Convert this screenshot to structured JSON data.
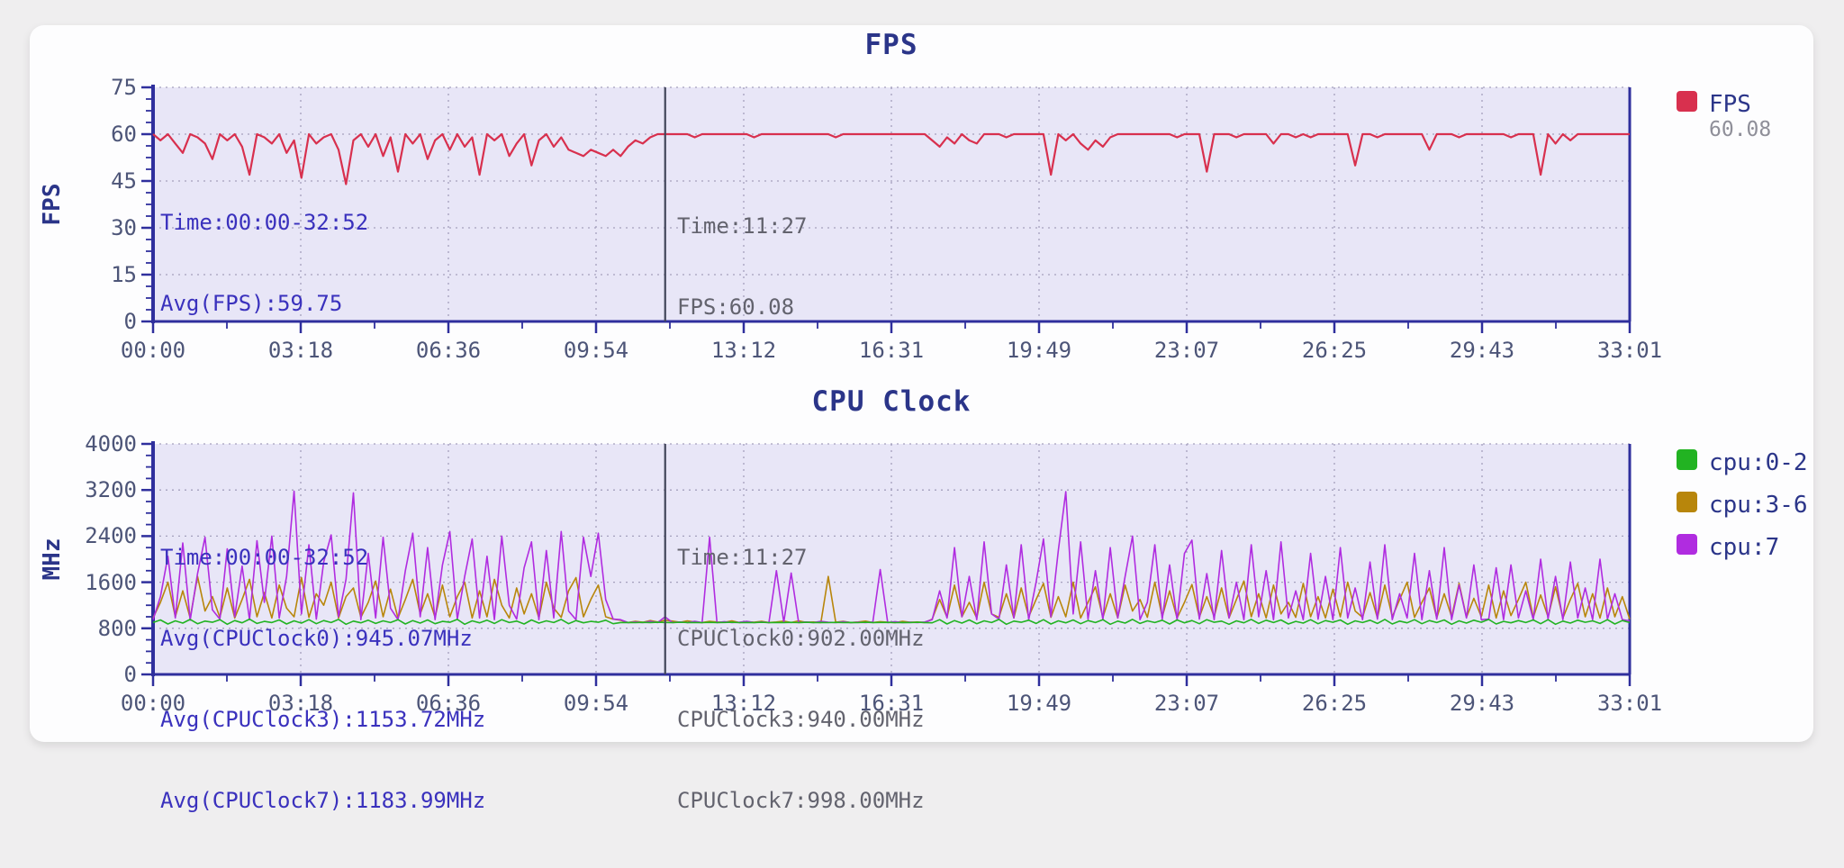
{
  "page": {
    "background": "#efeeef",
    "card_background": "#fdfdfe",
    "plot_background": "#e8e6f7",
    "axis_color": "#2f2f9d",
    "grid_color": "#a4a0bd",
    "cursor_color": "#42465a"
  },
  "chart_data": [
    {
      "type": "line",
      "title": "FPS",
      "ylabel": "FPS",
      "ylim": [
        0,
        75
      ],
      "yticks": [
        0,
        15,
        30,
        45,
        60,
        75
      ],
      "xticks": [
        "00:00",
        "03:18",
        "06:36",
        "09:54",
        "13:12",
        "16:31",
        "19:49",
        "23:07",
        "26:25",
        "29:43",
        "33:01"
      ],
      "duration_seconds": 1981,
      "cursor_seconds": 687,
      "grid": "dotted",
      "legend_position": "right",
      "legend": {
        "label": "FPS",
        "value": "60.08",
        "color": "#d8304e"
      },
      "annotations": {
        "range": [
          "Time:00:00-32:52",
          "Avg(FPS):59.75"
        ],
        "cursor": [
          "Time:11:27",
          "FPS:60.08"
        ]
      },
      "series": [
        {
          "name": "FPS",
          "color": "#d8304e",
          "values": [
            60,
            58,
            60,
            57,
            54,
            60,
            59,
            57,
            52,
            60,
            58,
            60,
            56,
            47,
            60,
            59,
            57,
            60,
            54,
            58,
            46,
            60,
            57,
            59,
            60,
            55,
            44,
            58,
            60,
            56,
            60,
            53,
            59,
            48,
            60,
            57,
            60,
            52,
            58,
            60,
            55,
            60,
            56,
            59,
            47,
            60,
            58,
            60,
            53,
            57,
            60,
            50,
            58,
            60,
            56,
            59,
            55,
            54,
            53,
            55,
            54,
            53,
            55,
            53,
            56,
            58,
            57,
            59,
            60,
            60,
            60,
            60,
            60,
            59,
            60,
            60,
            60,
            60,
            60,
            60,
            60,
            59,
            60,
            60,
            60,
            60,
            60,
            60,
            60,
            60,
            60,
            60,
            59,
            60,
            60,
            60,
            60,
            60,
            60,
            60,
            60,
            60,
            60,
            60,
            60,
            58,
            56,
            59,
            57,
            60,
            58,
            57,
            60,
            60,
            60,
            59,
            60,
            60,
            60,
            60,
            60,
            47,
            60,
            58,
            60,
            57,
            55,
            58,
            56,
            59,
            60,
            60,
            60,
            60,
            60,
            60,
            60,
            60,
            59,
            60,
            60,
            60,
            48,
            60,
            60,
            60,
            59,
            60,
            60,
            60,
            60,
            57,
            60,
            60,
            59,
            60,
            59,
            60,
            60,
            60,
            60,
            60,
            50,
            60,
            60,
            59,
            60,
            60,
            60,
            60,
            60,
            60,
            55,
            60,
            60,
            60,
            59,
            60,
            60,
            60,
            60,
            60,
            60,
            59,
            60,
            60,
            60,
            47,
            60,
            57,
            60,
            58,
            60,
            60,
            60,
            60,
            60,
            60,
            60,
            60
          ]
        }
      ]
    },
    {
      "type": "line",
      "title": "CPU Clock",
      "ylabel": "MHz",
      "ylim": [
        0,
        4000
      ],
      "yticks": [
        0,
        800,
        1600,
        2400,
        3200,
        4000
      ],
      "xticks": [
        "00:00",
        "03:18",
        "06:36",
        "09:54",
        "13:12",
        "16:31",
        "19:49",
        "23:07",
        "26:25",
        "29:43",
        "33:01"
      ],
      "duration_seconds": 1981,
      "cursor_seconds": 687,
      "grid": "dotted",
      "legend_position": "right",
      "legend": [
        {
          "label": "cpu:0-2",
          "color": "#22b322"
        },
        {
          "label": "cpu:3-6",
          "color": "#b8860b"
        },
        {
          "label": "cpu:7",
          "color": "#b02ce0"
        }
      ],
      "annotations": {
        "range": [
          "Time:00:00-32:52",
          "Avg(CPUClock0):945.07MHz",
          "Avg(CPUClock3):1153.72MHz",
          "Avg(CPUClock7):1183.99MHz"
        ],
        "cursor": [
          "Time:11:27",
          "CPUClock0:902.00MHz",
          "CPUClock3:940.00MHz",
          "CPUClock7:998.00MHz"
        ]
      },
      "series": [
        {
          "name": "cpu:3-6",
          "color": "#b8860b",
          "values": [
            980,
            1250,
            1600,
            1000,
            1450,
            980,
            1700,
            1100,
            1350,
            990,
            1500,
            980,
            1300,
            1650,
            1000,
            1420,
            980,
            1550,
            1150,
            1000,
            1680,
            990,
            1400,
            1200,
            1600,
            980,
            1350,
            1500,
            990,
            1250,
            1620,
            1000,
            1480,
            980,
            1300,
            1650,
            1050,
            1400,
            990,
            1550,
            1000,
            1350,
            1600,
            980,
            1450,
            1000,
            1650,
            1200,
            980,
            1500,
            1050,
            1400,
            980,
            1600,
            1150,
            990,
            1450,
            1680,
            1000,
            1300,
            1550,
            1000,
            960,
            940,
            900,
            920,
            905,
            935,
            910,
            940,
            925,
            905,
            930,
            910,
            900,
            920,
            910,
            905,
            930,
            900,
            915,
            905,
            920,
            900,
            910,
            925,
            900,
            930,
            905,
            910,
            900,
            1700,
            905,
            920,
            900,
            910,
            925,
            900,
            915,
            905,
            900,
            920,
            905,
            910,
            900,
            960,
            1300,
            990,
            1550,
            1000,
            1250,
            980,
            1600,
            1050,
            990,
            1400,
            980,
            1500,
            1000,
            1300,
            1580,
            990,
            1350,
            1000,
            1600,
            980,
            1250,
            1520,
            990,
            1400,
            980,
            1550,
            1100,
            1300,
            990,
            1600,
            1000,
            1450,
            980,
            1250,
            1560,
            990,
            1350,
            1000,
            1500,
            980,
            1300,
            1620,
            1000,
            1400,
            980,
            1550,
            1050,
            1250,
            990,
            1580,
            1000,
            1350,
            980,
            1480,
            1000,
            1600,
            1100,
            990,
            1420,
            980,
            1550,
            1000,
            1300,
            1600,
            990,
            1250,
            1500,
            980,
            1400,
            1000,
            1580,
            990,
            1320,
            1000,
            1550,
            980,
            1450,
            1020,
            1300,
            1600,
            990,
            1380,
            1000,
            1520,
            980,
            1300,
            1580,
            1000,
            1400,
            980,
            1500,
            1000,
            1350,
            960
          ]
        },
        {
          "name": "cpu:7",
          "color": "#b02ce0",
          "values": [
            950,
            1350,
            2050,
            980,
            2280,
            940,
            1750,
            2380,
            1120,
            960,
            2180,
            1000,
            1880,
            950,
            2320,
            1250,
            2400,
            980,
            1700,
            3180,
            1050,
            2250,
            960,
            1950,
            2420,
            1000,
            1650,
            3150,
            950,
            2100,
            980,
            2380,
            1150,
            950,
            1800,
            2450,
            1000,
            2200,
            950,
            1900,
            2480,
            960,
            1700,
            2350,
            980,
            2050,
            950,
            2400,
            1200,
            960,
            1850,
            2300,
            950,
            2150,
            980,
            2480,
            1100,
            950,
            2380,
            1700,
            2450,
            1300,
            960,
            950,
            900,
            910,
            900,
            920,
            900,
            998,
            900,
            910,
            900,
            920,
            900,
            2380,
            900,
            915,
            900,
            905,
            920,
            900,
            910,
            900,
            1800,
            905,
            1760,
            900,
            910,
            900,
            920,
            905,
            900,
            915,
            900,
            905,
            900,
            910,
            1820,
            900,
            915,
            900,
            905,
            900,
            910,
            950,
            1450,
            980,
            2200,
            1000,
            1700,
            950,
            2300,
            1050,
            960,
            1900,
            980,
            2250,
            950,
            1600,
            2350,
            1000,
            2150,
            3170,
            1050,
            2300,
            960,
            1800,
            950,
            2200,
            980,
            1700,
            2400,
            950,
            1250,
            2250,
            960,
            1900,
            950,
            2100,
            2330,
            960,
            1750,
            950,
            2150,
            980,
            1600,
            950,
            2250,
            1000,
            1800,
            950,
            2300,
            980,
            1450,
            950,
            2100,
            960,
            1700,
            950,
            2200,
            980,
            1500,
            950,
            1950,
            960,
            2250,
            950,
            1400,
            980,
            2100,
            950,
            1800,
            960,
            2200,
            950,
            1550,
            980,
            1900,
            950,
            960,
            1850,
            950,
            1900,
            980,
            1450,
            950,
            2000,
            960,
            1700,
            950,
            1950,
            980,
            1500,
            950,
            2000,
            960,
            1400,
            950,
            930
          ]
        },
        {
          "name": "cpu:0-2",
          "color": "#22b322",
          "values": [
            900,
            945,
            875,
            930,
            890,
            955,
            880,
            925,
            905,
            950,
            870,
            935,
            895,
            960,
            885,
            920,
            900,
            945,
            875,
            930,
            890,
            950,
            880,
            935,
            900,
            955,
            870,
            925,
            895,
            940,
            885,
            930,
            900,
            950,
            875,
            935,
            890,
            945,
            880,
            920,
            905,
            955,
            870,
            930,
            895,
            940,
            885,
            950,
            900,
            925,
            875,
            945,
            890,
            930,
            900,
            955,
            880,
            935,
            895,
            920,
            905,
            940,
            880,
            900,
            902,
            898,
            903,
            900,
            905,
            902,
            899,
            904,
            900,
            902,
            898,
            903,
            900,
            901,
            905,
            899,
            902,
            900,
            904,
            898,
            902,
            900,
            903,
            899,
            905,
            900,
            902,
            898,
            903,
            900,
            902,
            899,
            904,
            900,
            901,
            903,
            898,
            902,
            900,
            905,
            900,
            895,
            950,
            875,
            935,
            890,
            945,
            880,
            930,
            900,
            955,
            870,
            925,
            905,
            940,
            885,
            950,
            875,
            930,
            895,
            945,
            880,
            935,
            900,
            950,
            870,
            925,
            890,
            955,
            885,
            930,
            900,
            940,
            875,
            945,
            895,
            935,
            880,
            950,
            905,
            925,
            870,
            930,
            895,
            955,
            885,
            940,
            900,
            945,
            875,
            920,
            890,
            950,
            880,
            935,
            905,
            945,
            870,
            930,
            900,
            940,
            885,
            955,
            875,
            925,
            895,
            950,
            880,
            935,
            900,
            945,
            870,
            930,
            890,
            940,
            905,
            955,
            875,
            920,
            895,
            935,
            900,
            945,
            880,
            950,
            870,
            925,
            890,
            940,
            905,
            930,
            885,
            950,
            875,
            935,
            900
          ]
        }
      ]
    }
  ]
}
